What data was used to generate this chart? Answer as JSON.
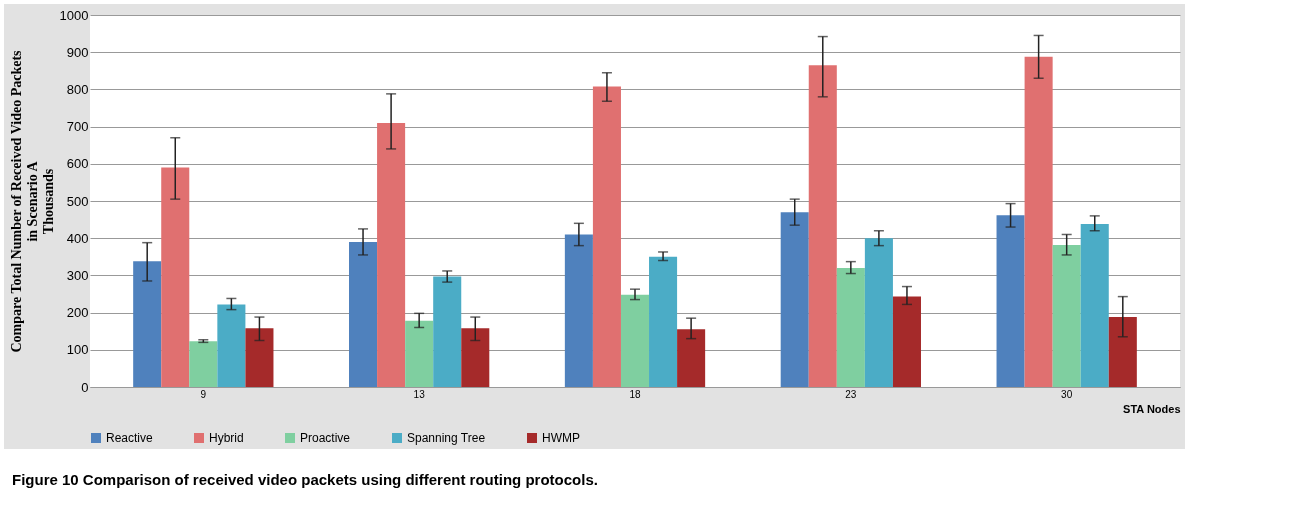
{
  "chart_data": {
    "type": "bar",
    "xlabel": "STA Nodes",
    "ylabel": "Compare Total Number of Received Video Packets in Scenario A",
    "categories": [
      "9",
      "13",
      "18",
      "23",
      "30"
    ],
    "series": [
      {
        "name": "Reactive",
        "color": "#4f81bd",
        "values": [
          338,
          390,
          410,
          470,
          462
        ],
        "errors": [
          [
            285,
            388
          ],
          [
            355,
            425
          ],
          [
            380,
            440
          ],
          [
            435,
            505
          ],
          [
            430,
            493
          ]
        ]
      },
      {
        "name": "Hybrid",
        "color": "#e07070",
        "values": [
          590,
          710,
          808,
          865,
          888
        ],
        "errors": [
          [
            505,
            670
          ],
          [
            640,
            788
          ],
          [
            768,
            845
          ],
          [
            780,
            942
          ],
          [
            830,
            945
          ]
        ]
      },
      {
        "name": "Proactive",
        "color": "#7fcfa0",
        "values": [
          123,
          178,
          248,
          320,
          382
        ],
        "errors": [
          [
            120,
            127
          ],
          [
            160,
            198
          ],
          [
            235,
            263
          ],
          [
            305,
            337
          ],
          [
            355,
            410
          ]
        ]
      },
      {
        "name": "Spanning Tree",
        "color": "#4bacc6",
        "values": [
          222,
          297,
          350,
          400,
          438
        ],
        "errors": [
          [
            208,
            238
          ],
          [
            282,
            312
          ],
          [
            340,
            363
          ],
          [
            380,
            420
          ],
          [
            420,
            460
          ]
        ]
      },
      {
        "name": "HWMP",
        "color": "#a52a2a",
        "values": [
          158,
          158,
          155,
          243,
          188
        ],
        "errors": [
          [
            125,
            188
          ],
          [
            125,
            188
          ],
          [
            130,
            185
          ],
          [
            222,
            270
          ],
          [
            135,
            243
          ]
        ]
      }
    ],
    "ylim": [
      0,
      1000
    ],
    "yticks": [
      0,
      100,
      200,
      300,
      400,
      500,
      600,
      700,
      800,
      900,
      1000
    ],
    "grid": "y",
    "legend": "bottom",
    "annotations": [
      "Thousands",
      "Figure 10 Comparison of received video packets using different routing protocols."
    ]
  }
}
